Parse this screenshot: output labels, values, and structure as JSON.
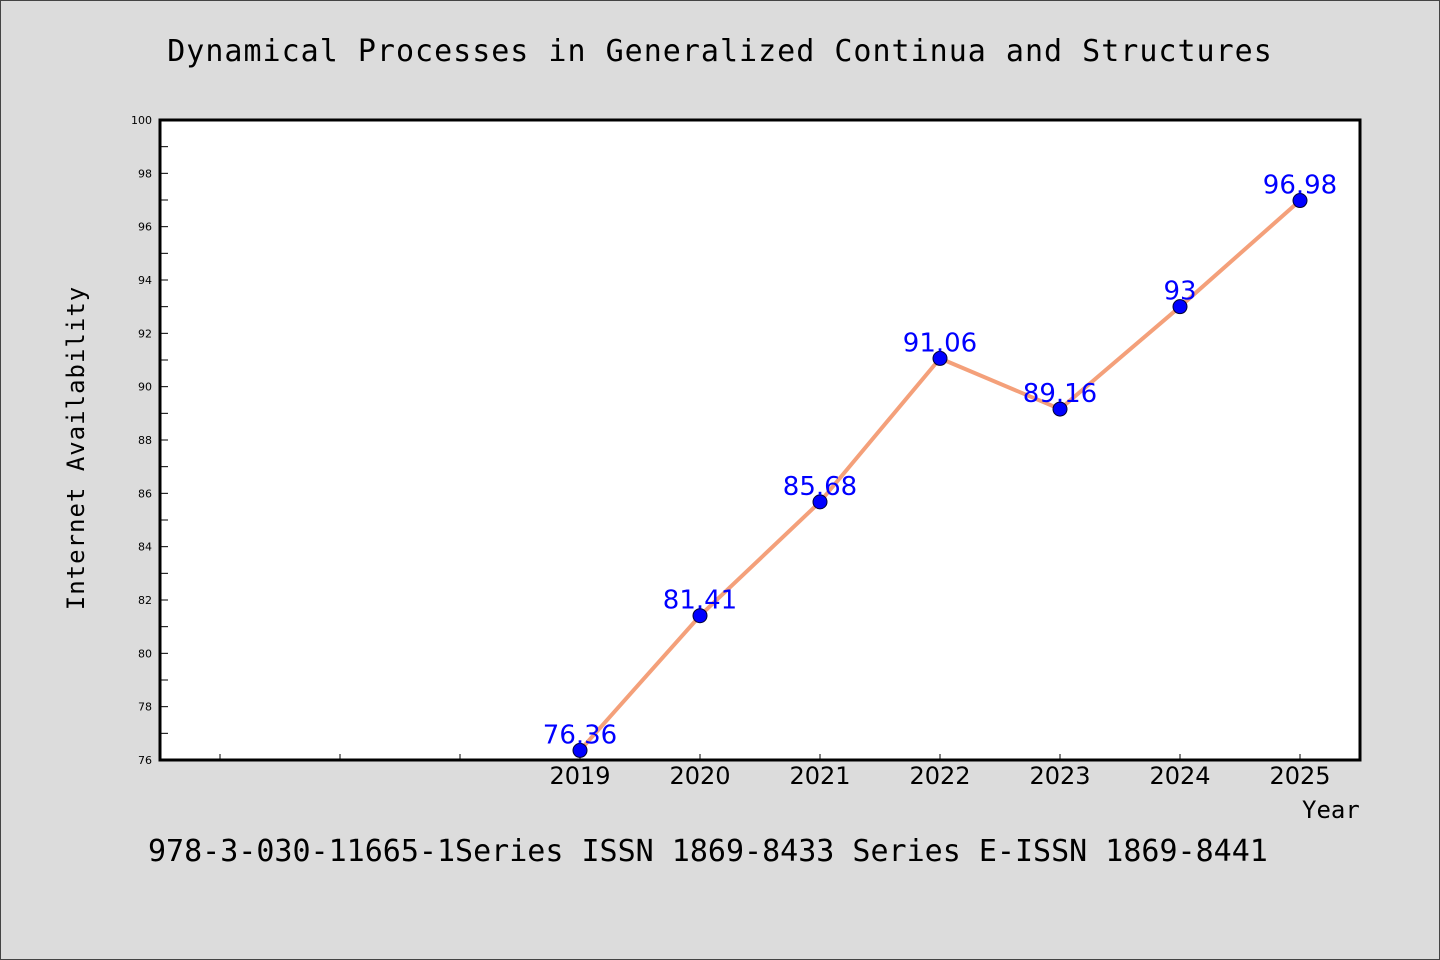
{
  "title": "Dynamical Processes in Generalized Continua and Structures",
  "footer": "978-3-030-11665-1Series ISSN 1869-8433 Series E-ISSN 1869-8441",
  "chart_data": {
    "type": "line",
    "title": "Dynamical Processes in Generalized Continua and Structures",
    "xlabel": "Year",
    "ylabel": "Internet Availability",
    "categories": [
      "2019",
      "2020",
      "2021",
      "2022",
      "2023",
      "2024",
      "2025"
    ],
    "series": [
      {
        "values": [
          76.36,
          81.41,
          85.68,
          91.06,
          89.16,
          93,
          96.98
        ],
        "labels": [
          "76.36",
          "81.41",
          "85.68",
          "91.06",
          "89.16",
          "93",
          "96.98"
        ],
        "line_color": "#f4a07a",
        "marker_color": "#0000ff"
      }
    ],
    "ylim": [
      76,
      100
    ],
    "yticks": [
      "76",
      "78",
      "80",
      "82",
      "84",
      "86",
      "88",
      "90",
      "92",
      "94",
      "96",
      "98",
      "100"
    ],
    "grid": false,
    "legend": "none"
  }
}
